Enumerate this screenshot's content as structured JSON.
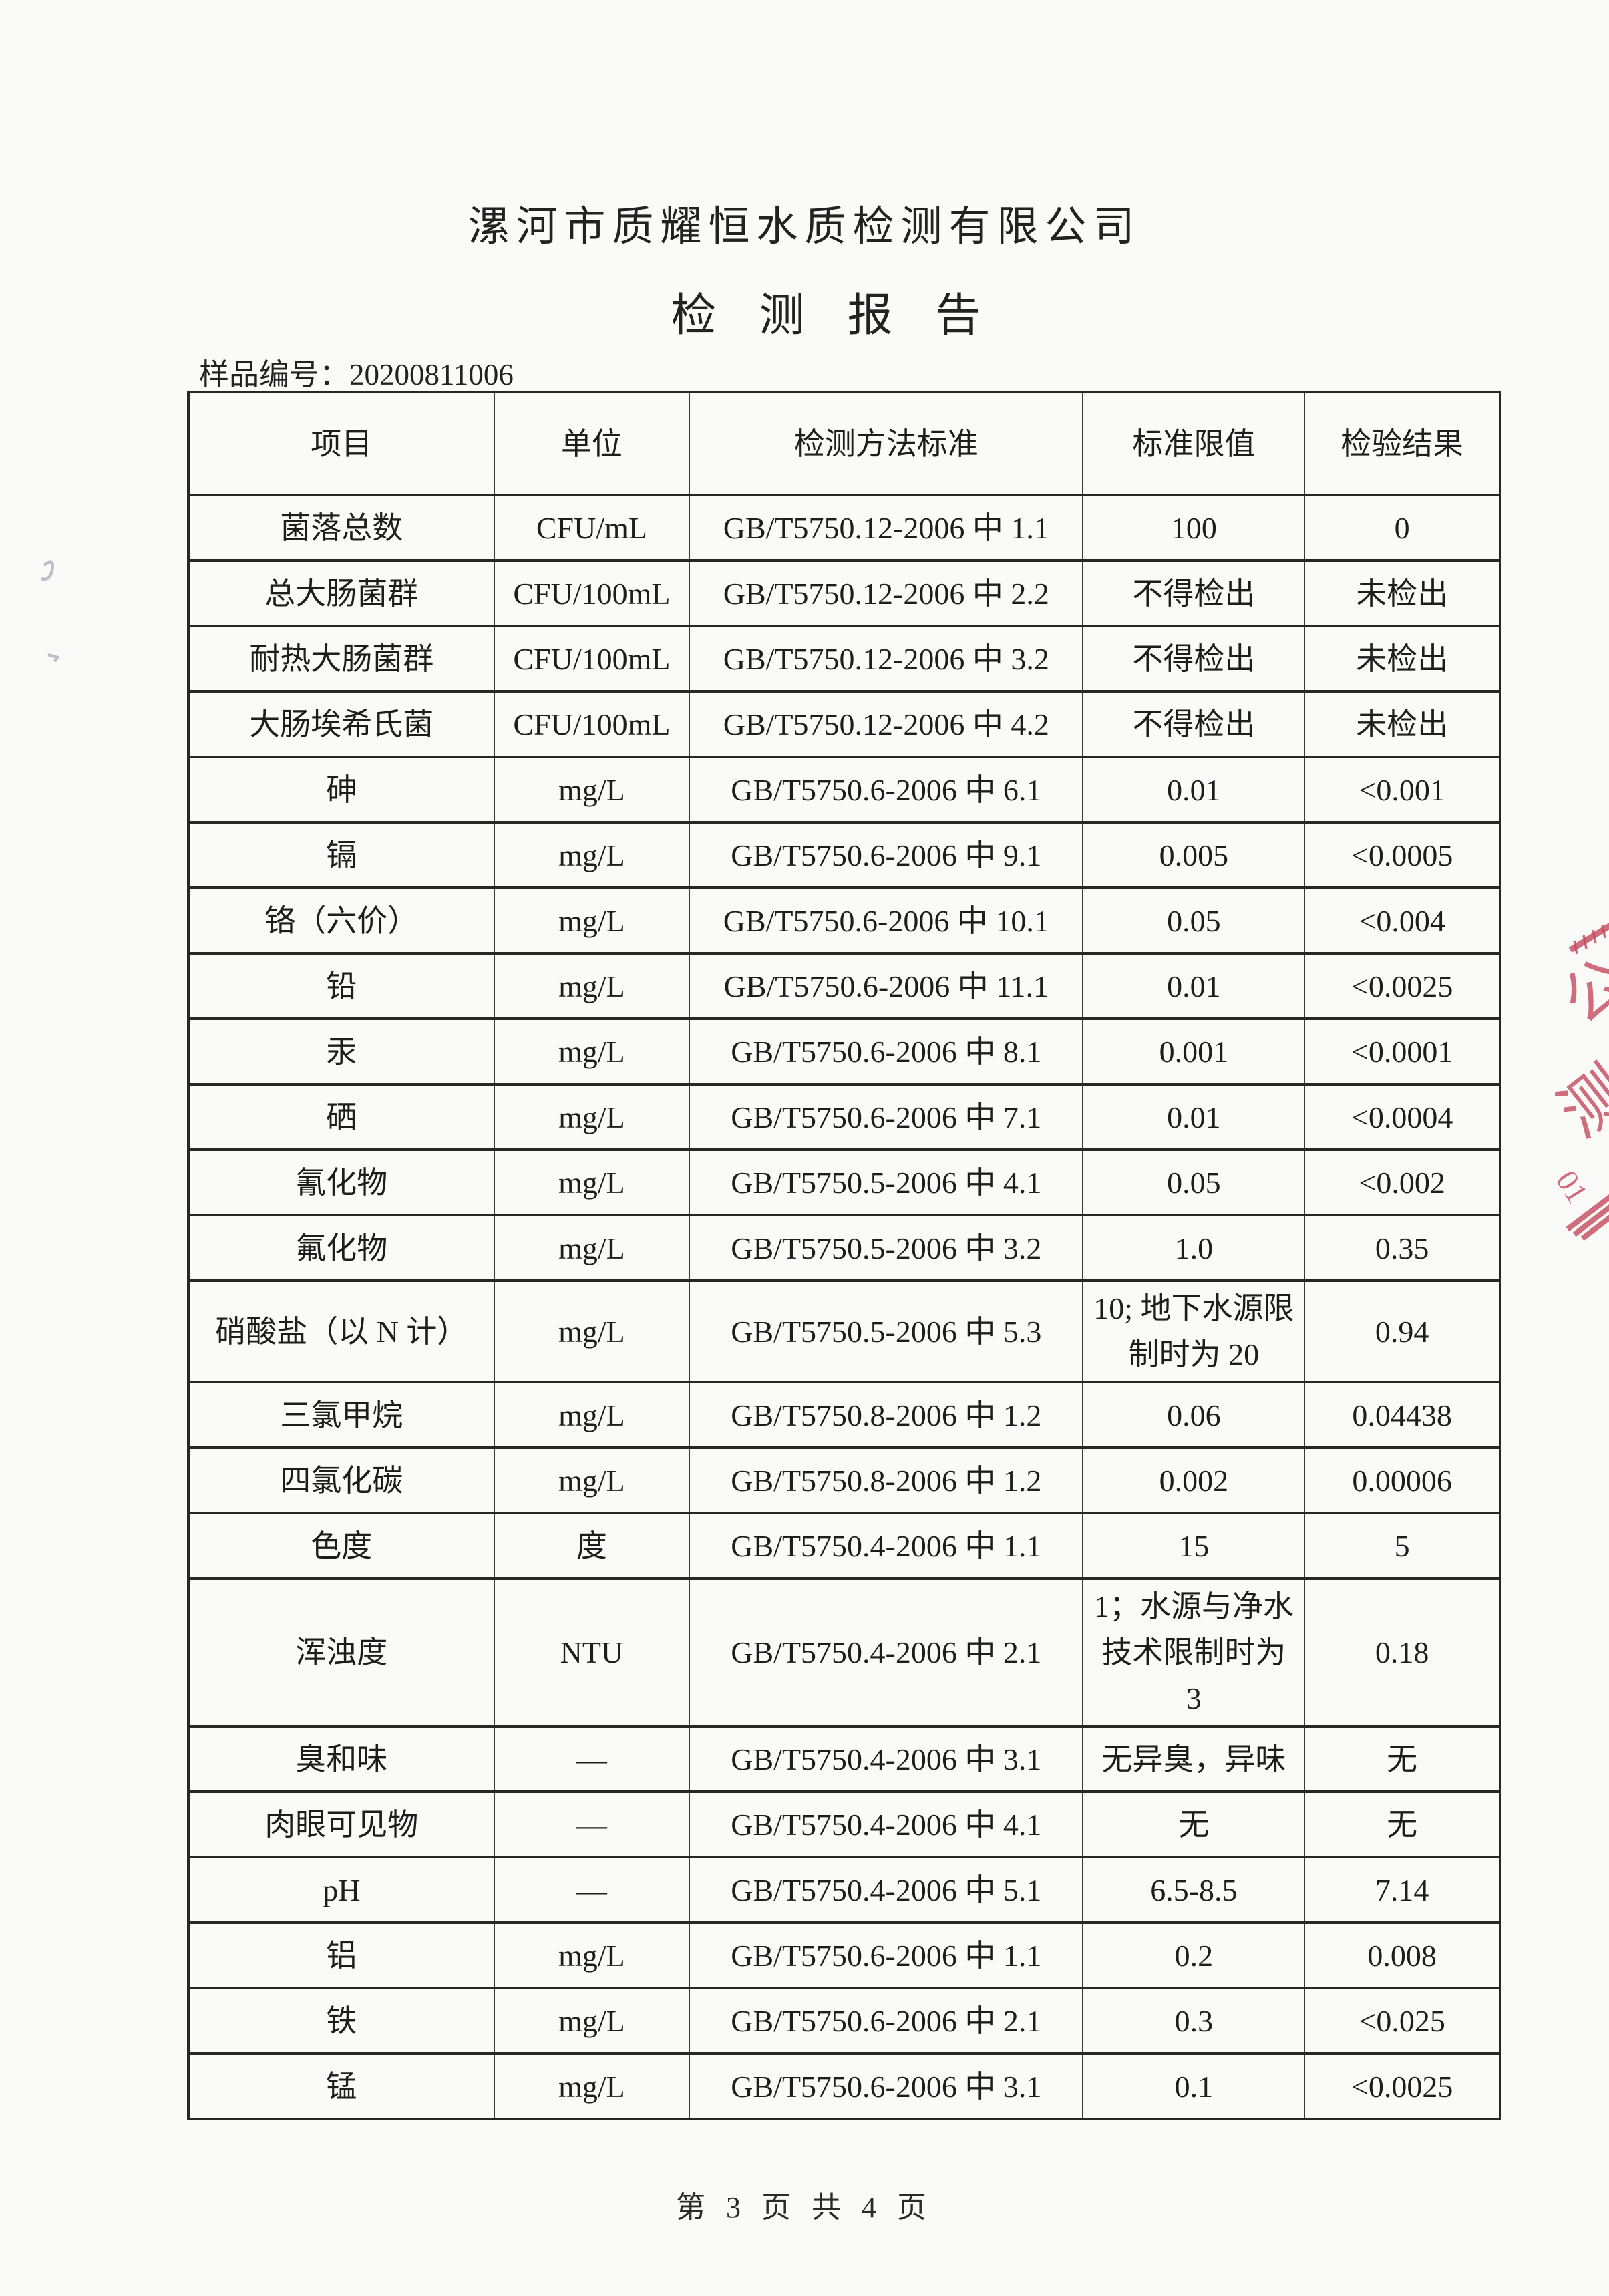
{
  "page": {
    "company_title": "漯河市质耀恒水质检测有限公司",
    "report_title": "检测报告",
    "sample_no_label": "样品编号：",
    "sample_no_value": "20200811006",
    "footer_text": "第 3 页 共 4 页"
  },
  "table": {
    "columns": [
      "项目",
      "单位",
      "检测方法标准",
      "标准限值",
      "检验结果"
    ],
    "rows": [
      {
        "item": "菌落总数",
        "unit": "CFU/mL",
        "method": "GB/T5750.12-2006 中 1.1",
        "limit": "100",
        "result": "0"
      },
      {
        "item": "总大肠菌群",
        "unit": "CFU/100mL",
        "method": "GB/T5750.12-2006 中 2.2",
        "limit": "不得检出",
        "result": "未检出"
      },
      {
        "item": "耐热大肠菌群",
        "unit": "CFU/100mL",
        "method": "GB/T5750.12-2006 中 3.2",
        "limit": "不得检出",
        "result": "未检出"
      },
      {
        "item": "大肠埃希氏菌",
        "unit": "CFU/100mL",
        "method": "GB/T5750.12-2006 中 4.2",
        "limit": "不得检出",
        "result": "未检出"
      },
      {
        "item": "砷",
        "unit": "mg/L",
        "method": "GB/T5750.6-2006 中 6.1",
        "limit": "0.01",
        "result": "<0.001"
      },
      {
        "item": "镉",
        "unit": "mg/L",
        "method": "GB/T5750.6-2006 中 9.1",
        "limit": "0.005",
        "result": "<0.0005"
      },
      {
        "item": "铬（六价）",
        "unit": "mg/L",
        "method": "GB/T5750.6-2006 中 10.1",
        "limit": "0.05",
        "result": "<0.004"
      },
      {
        "item": "铅",
        "unit": "mg/L",
        "method": "GB/T5750.6-2006 中 11.1",
        "limit": "0.01",
        "result": "<0.0025"
      },
      {
        "item": "汞",
        "unit": "mg/L",
        "method": "GB/T5750.6-2006 中 8.1",
        "limit": "0.001",
        "result": "<0.0001"
      },
      {
        "item": "硒",
        "unit": "mg/L",
        "method": "GB/T5750.6-2006 中 7.1",
        "limit": "0.01",
        "result": "<0.0004"
      },
      {
        "item": "氰化物",
        "unit": "mg/L",
        "method": "GB/T5750.5-2006 中 4.1",
        "limit": "0.05",
        "result": "<0.002"
      },
      {
        "item": "氟化物",
        "unit": "mg/L",
        "method": "GB/T5750.5-2006 中 3.2",
        "limit": "1.0",
        "result": "0.35"
      },
      {
        "item": "硝酸盐（以 N 计）",
        "unit": "mg/L",
        "method": "GB/T5750.5-2006 中 5.3",
        "limit": "10; 地下水源限制时为 20",
        "result": "0.94"
      },
      {
        "item": "三氯甲烷",
        "unit": "mg/L",
        "method": "GB/T5750.8-2006 中 1.2",
        "limit": "0.06",
        "result": "0.04438"
      },
      {
        "item": "四氯化碳",
        "unit": "mg/L",
        "method": "GB/T5750.8-2006 中 1.2",
        "limit": "0.002",
        "result": "0.00006"
      },
      {
        "item": "色度",
        "unit": "度",
        "method": "GB/T5750.4-2006 中 1.1",
        "limit": "15",
        "result": "5"
      },
      {
        "item": "浑浊度",
        "unit": "NTU",
        "method": "GB/T5750.4-2006 中 2.1",
        "limit": "1；水源与净水技术限制时为 3",
        "result": "0.18"
      },
      {
        "item": "臭和味",
        "unit": "—",
        "method": "GB/T5750.4-2006 中 3.1",
        "limit": "无异臭，异味",
        "result": "无"
      },
      {
        "item": "肉眼可见物",
        "unit": "—",
        "method": "GB/T5750.4-2006 中 4.1",
        "limit": "无",
        "result": "无"
      },
      {
        "item": "pH",
        "unit": "—",
        "method": "GB/T5750.4-2006 中 5.1",
        "limit": "6.5-8.5",
        "result": "7.14"
      },
      {
        "item": "铝",
        "unit": "mg/L",
        "method": "GB/T5750.6-2006 中 1.1",
        "limit": "0.2",
        "result": "0.008"
      },
      {
        "item": "铁",
        "unit": "mg/L",
        "method": "GB/T5750.6-2006 中 2.1",
        "limit": "0.3",
        "result": "<0.025"
      },
      {
        "item": "锰",
        "unit": "mg/L",
        "method": "GB/T5750.6-2006 中 3.1",
        "limit": "0.1",
        "result": "<0.0025"
      }
    ]
  },
  "icons": {
    "seal_stamp": "red-seal-stamp-fragment",
    "pen_marks": "handwritten-pen-marks"
  },
  "colors": {
    "seal_red": "#c64a5e",
    "text": "#1d1d1d",
    "border": "#2a2a2a",
    "page_bg": "#fafaf8"
  }
}
